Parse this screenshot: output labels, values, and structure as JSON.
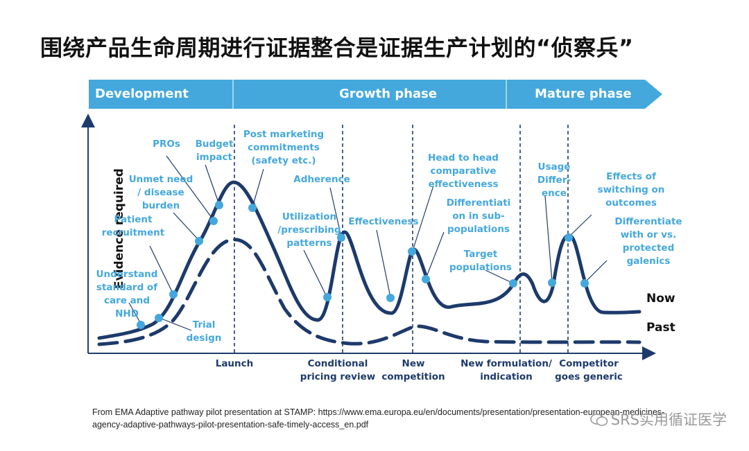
{
  "title": "围绕产品生命周期进行证据整合是证据生产计划的“侦察兵”",
  "phases": [
    "Development",
    "Growth phase",
    "Mature phase"
  ],
  "y_axis_label": "Evidence required",
  "legend": {
    "now": "Now",
    "past": "Past"
  },
  "milestones": [
    {
      "lines": [
        "Launch"
      ]
    },
    {
      "lines": [
        "Conditional",
        "pricing review"
      ]
    },
    {
      "lines": [
        "New",
        "competition"
      ]
    },
    {
      "lines": [
        "New  formulation/",
        "indication"
      ]
    },
    {
      "lines": [
        "Competitor",
        "goes generic"
      ]
    }
  ],
  "annotations": [
    {
      "lines": [
        "Understand",
        "standard of",
        "care and",
        "NHD"
      ]
    },
    {
      "lines": [
        "Trial",
        "design"
      ]
    },
    {
      "lines": [
        "Patient",
        "recruitment"
      ]
    },
    {
      "lines": [
        "Unmet need",
        "/ disease",
        "burden"
      ]
    },
    {
      "lines": [
        "PROs"
      ]
    },
    {
      "lines": [
        "Budget",
        "impact"
      ]
    },
    {
      "lines": [
        "Post marketing",
        "commitments",
        "(safety etc.)"
      ]
    },
    {
      "lines": [
        "Utilization",
        "/prescribing",
        "patterns"
      ]
    },
    {
      "lines": [
        "Adherence"
      ]
    },
    {
      "lines": [
        "Effectiveness"
      ]
    },
    {
      "lines": [
        "Head to head",
        "comparative",
        "effectiveness"
      ]
    },
    {
      "lines": [
        "Differentiati",
        "on in sub-",
        "populations"
      ]
    },
    {
      "lines": [
        "Target",
        "populations"
      ]
    },
    {
      "lines": [
        "Usage",
        "Differ-",
        "ence"
      ]
    },
    {
      "lines": [
        "Effects of",
        "switching on",
        "outcomes"
      ]
    },
    {
      "lines": [
        "Differentiate",
        "with or vs.",
        "protected",
        "galenics"
      ]
    }
  ],
  "source": {
    "line1": "From EMA Adaptive pathway pilot presentation at STAMP: https://www.ema.europa.eu/en/documents/presentation/presentation-european-medicines-",
    "line2": "agency-adaptive-pathways-pilot-presentation-safe-timely-access_en.pdf"
  },
  "watermark": "SRS实用循证医学",
  "colors": {
    "phase_bar": "#44a8dd",
    "curve": "#1d3a6b",
    "marker": "#44a8dd",
    "annotation": "#44a8dd"
  }
}
